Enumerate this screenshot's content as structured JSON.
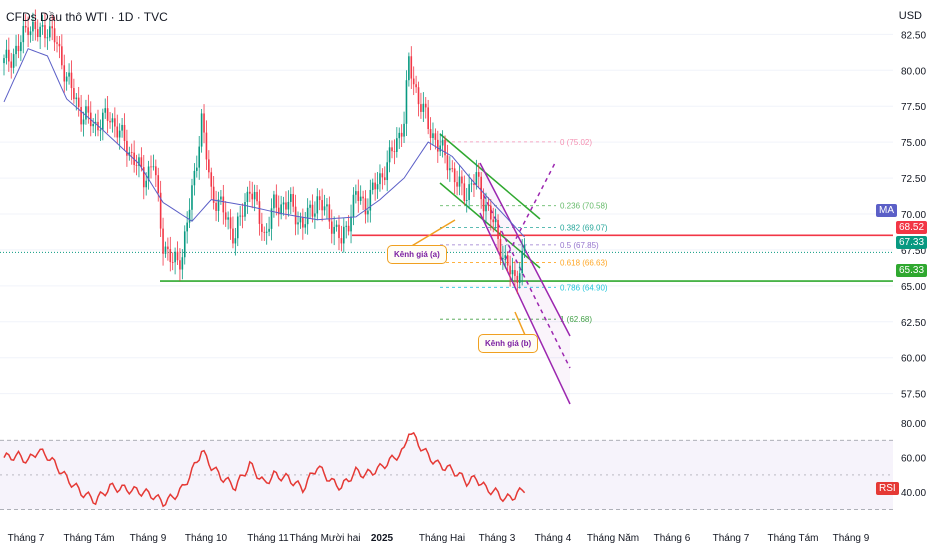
{
  "header": {
    "title": "CFDs Dầu thô WTI · 1D · TVC",
    "currency": "USD"
  },
  "colors": {
    "candle_up": "#089981",
    "candle_down": "#f23645",
    "ma": "#5b5fc7",
    "rsi": "#e53935",
    "support": "#2fa82f",
    "resistance": "#f23645",
    "channel_a": "#2fa82f",
    "channel_b": "#9c27b0",
    "annotation_border": "#f0a020"
  },
  "tags": {
    "ma_label": "MA",
    "rsi_label": "RSI",
    "resistance": "68.52",
    "last_price": "67.33",
    "support": "65.33"
  },
  "annotations": {
    "channel_a": "Kênh giá (a)",
    "channel_b": "Kênh giá (b)"
  },
  "chart_data": [
    {
      "type": "candlestick",
      "title": "CFDs Dầu thô WTI · 1D · TVC",
      "ylabel": "USD",
      "y_ticks": [
        "82.50",
        "80.00",
        "77.50",
        "75.00",
        "72.50",
        "70.00",
        "67.50",
        "65.00",
        "62.50",
        "60.00",
        "57.50"
      ],
      "ylim": [
        56.5,
        83.5
      ],
      "x_ticks": [
        "Tháng 7",
        "Tháng Tám",
        "Tháng 9",
        "Tháng 10",
        "Tháng 11",
        "Tháng Mười hai",
        "2025",
        "Tháng Hai",
        "Tháng 3",
        "Tháng 4",
        "Tháng Năm",
        "Tháng 6",
        "Tháng 7",
        "Tháng Tám",
        "Tháng 9"
      ],
      "price_path": [
        [
          0,
          80.5
        ],
        [
          6,
          81.5
        ],
        [
          10,
          83.3
        ],
        [
          14,
          82.5
        ],
        [
          18,
          83.0
        ],
        [
          22,
          81.8
        ],
        [
          26,
          79.5
        ],
        [
          32,
          77.0
        ],
        [
          38,
          76.2
        ],
        [
          44,
          76.8
        ],
        [
          50,
          75.0
        ],
        [
          54,
          73.8
        ],
        [
          58,
          72.5
        ],
        [
          62,
          73.6
        ],
        [
          66,
          68.0
        ],
        [
          70,
          66.5
        ],
        [
          74,
          67.2
        ],
        [
          78,
          71.5
        ],
        [
          82,
          76.5
        ],
        [
          86,
          71.5
        ],
        [
          90,
          70.5
        ],
        [
          96,
          68.4
        ],
        [
          102,
          72.0
        ],
        [
          108,
          68.5
        ],
        [
          112,
          70.5
        ],
        [
          118,
          70.8
        ],
        [
          124,
          69.2
        ],
        [
          130,
          71.0
        ],
        [
          136,
          69.5
        ],
        [
          140,
          68.0
        ],
        [
          146,
          71.3
        ],
        [
          150,
          70.6
        ],
        [
          156,
          72.5
        ],
        [
          160,
          73.8
        ],
        [
          166,
          76.5
        ],
        [
          168,
          80.5
        ],
        [
          172,
          78.0
        ],
        [
          176,
          76.2
        ],
        [
          180,
          74.8
        ],
        [
          184,
          73.8
        ],
        [
          188,
          72.0
        ],
        [
          192,
          71.5
        ],
        [
          196,
          72.5
        ],
        [
          200,
          70.5
        ],
        [
          204,
          69.0
        ],
        [
          208,
          66.5
        ],
        [
          212,
          65.5
        ],
        [
          216,
          67.3
        ]
      ],
      "ma_path": [
        [
          0,
          77.8
        ],
        [
          10,
          81.5
        ],
        [
          18,
          81.0
        ],
        [
          26,
          78.0
        ],
        [
          40,
          76.0
        ],
        [
          56,
          73.5
        ],
        [
          66,
          70.8
        ],
        [
          78,
          69.5
        ],
        [
          86,
          71.0
        ],
        [
          100,
          70.6
        ],
        [
          116,
          70.0
        ],
        [
          130,
          69.6
        ],
        [
          146,
          69.8
        ],
        [
          156,
          71.0
        ],
        [
          166,
          72.5
        ],
        [
          176,
          75.0
        ],
        [
          186,
          74.0
        ],
        [
          196,
          72.0
        ],
        [
          206,
          70.2
        ],
        [
          216,
          68.4
        ]
      ],
      "horizontal_levels": {
        "resistance": 68.52,
        "last_price": 67.33,
        "support": 65.33
      },
      "fibonacci": [
        {
          "label": "0 (75.02)",
          "value": 75.02
        },
        {
          "label": "0.236 (70.58)",
          "value": 70.58
        },
        {
          "label": "0.382 (69.07)",
          "value": 69.07
        },
        {
          "label": "0.5 (67.85)",
          "value": 67.85
        },
        {
          "label": "0.618 (66.63)",
          "value": 66.63
        },
        {
          "label": "0.786 (64.90)",
          "value": 64.9
        },
        {
          "label": "1 (62.68)",
          "value": 62.68
        }
      ]
    },
    {
      "type": "line",
      "ylabel": "RSI",
      "y_ticks": [
        "80.00",
        "60.00",
        "40.00"
      ],
      "ylim": [
        28,
        84
      ],
      "band": [
        30,
        70
      ],
      "rsi_path": [
        [
          0,
          60
        ],
        [
          6,
          61
        ],
        [
          10,
          58
        ],
        [
          14,
          64
        ],
        [
          18,
          61
        ],
        [
          22,
          55
        ],
        [
          26,
          48
        ],
        [
          32,
          40
        ],
        [
          38,
          35
        ],
        [
          44,
          43
        ],
        [
          50,
          42
        ],
        [
          54,
          41
        ],
        [
          58,
          40
        ],
        [
          62,
          38
        ],
        [
          66,
          34
        ],
        [
          70,
          37
        ],
        [
          74,
          42
        ],
        [
          78,
          52
        ],
        [
          82,
          64
        ],
        [
          86,
          55
        ],
        [
          90,
          49
        ],
        [
          96,
          43
        ],
        [
          102,
          56
        ],
        [
          108,
          45
        ],
        [
          112,
          50
        ],
        [
          118,
          48
        ],
        [
          124,
          42
        ],
        [
          130,
          55
        ],
        [
          136,
          46
        ],
        [
          140,
          43
        ],
        [
          146,
          52
        ],
        [
          150,
          50
        ],
        [
          156,
          54
        ],
        [
          160,
          58
        ],
        [
          166,
          64
        ],
        [
          168,
          76
        ],
        [
          172,
          68
        ],
        [
          176,
          61
        ],
        [
          180,
          56
        ],
        [
          184,
          54
        ],
        [
          188,
          51
        ],
        [
          192,
          46
        ],
        [
          196,
          48
        ],
        [
          200,
          42
        ],
        [
          204,
          40
        ],
        [
          208,
          36
        ],
        [
          212,
          38
        ],
        [
          216,
          42
        ]
      ]
    }
  ]
}
